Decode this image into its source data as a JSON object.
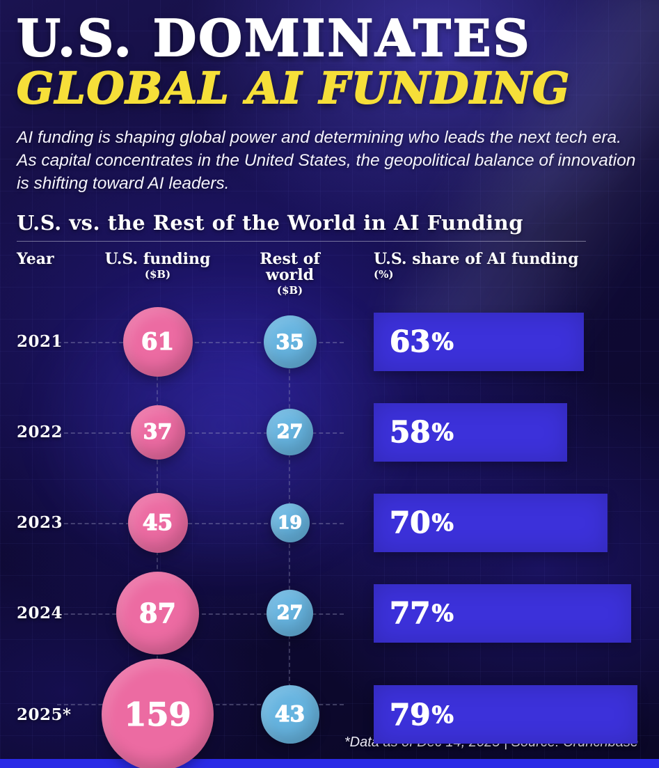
{
  "header": {
    "title": "U.S. DOMINATES",
    "subtitle": "GLOBAL AI FUNDING",
    "intro": "AI funding is shaping global power and determining who leads the next tech era. As capital concentrates in the United States, the geopolitical balance of innovation is shifting toward AI leaders."
  },
  "chart": {
    "section_title": "U.S. vs. the Rest of the World in AI Funding",
    "columns": {
      "year": "Year",
      "us": "U.S. funding",
      "us_unit": "($B)",
      "rest": "Rest of world",
      "rest_unit": "($B)",
      "share": "U.S. share of AI funding",
      "share_unit": "(%)"
    }
  },
  "labels": {
    "percent_sign": "%"
  },
  "chart_data": {
    "type": "bar",
    "title": "U.S. vs. the Rest of the World in AI Funding",
    "categories": [
      "2021",
      "2022",
      "2023",
      "2024",
      "2025*"
    ],
    "series": [
      {
        "name": "U.S. funding ($B)",
        "style": "proportional-bubble",
        "color": "#ec6ba2",
        "values": [
          61,
          37,
          45,
          87,
          159
        ]
      },
      {
        "name": "Rest of world ($B)",
        "style": "proportional-bubble",
        "color": "#66b4e0",
        "values": [
          35,
          27,
          19,
          27,
          43
        ]
      },
      {
        "name": "U.S. share of AI funding (%)",
        "style": "bar",
        "color": "#3c31da",
        "values": [
          63,
          58,
          70,
          77,
          79
        ]
      }
    ],
    "layout": {
      "bar_range": [
        0,
        80
      ],
      "grid": "dashed-guides",
      "legend": "column-headers"
    }
  },
  "footer": {
    "note": "*Data as of Dec 14, 2025 | Source: Crunchbase"
  },
  "theme": {
    "background": "#0f0a36",
    "accent_yellow": "#f6df39",
    "us_bubble_pink": "#ec6ba2",
    "rest_bubble_blue": "#66b4e0",
    "share_bar_blue": "#3c31da",
    "bottom_strip_blue": "#2a2ae6"
  }
}
